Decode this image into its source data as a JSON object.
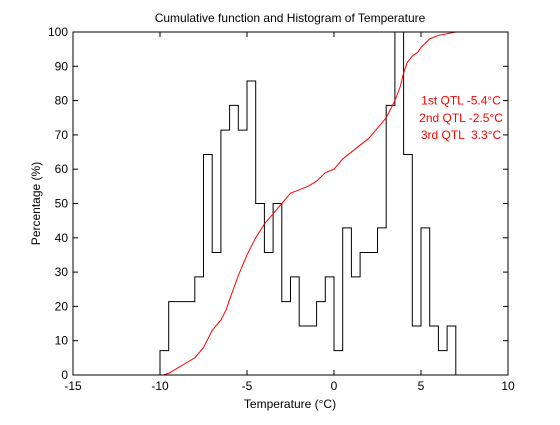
{
  "chart_data": {
    "type": "line",
    "title": "Cumulative function and Histogram of Temperature",
    "xlabel": "Temperature (°C)",
    "ylabel": "Percentage (%)",
    "xlim": [
      -15,
      10
    ],
    "ylim": [
      0,
      100
    ],
    "xticks": [
      -15,
      -10,
      -5,
      0,
      5,
      10
    ],
    "yticks": [
      0,
      10,
      20,
      30,
      40,
      50,
      60,
      70,
      80,
      90,
      100
    ],
    "grid": false,
    "series": [
      {
        "kind": "histogram-stairs",
        "color": "#000000",
        "bin_edges": [
          -10,
          -9.5,
          -9,
          -8,
          -7.5,
          -7,
          -6.5,
          -6,
          -5.5,
          -5,
          -4.5,
          -4,
          -3.5,
          -3,
          -2.5,
          -2,
          -1.5,
          -1,
          -0.5,
          0,
          0.5,
          1,
          1.5,
          2,
          2.5,
          3,
          3.5,
          4,
          4.5,
          5,
          5.5,
          6,
          6.5,
          7
        ],
        "values": [
          7.1,
          21.4,
          21.4,
          28.6,
          64.3,
          35.7,
          71.4,
          78.6,
          71.4,
          85.7,
          50,
          35.7,
          50,
          21.4,
          28.6,
          14.3,
          14.3,
          21.4,
          28.6,
          7.1,
          42.9,
          28.6,
          35.7,
          35.7,
          42.9,
          78.6,
          100,
          64.3,
          14.3,
          42.9,
          14.3,
          7.1,
          14.3
        ]
      },
      {
        "kind": "cdf",
        "color": "#ff0000",
        "x": [
          -15,
          -9.8,
          -9.5,
          -9,
          -8.5,
          -8,
          -7.5,
          -7,
          -6.5,
          -6.2,
          -6,
          -5.5,
          -5,
          -4.5,
          -4,
          -3.5,
          -3,
          -2.5,
          -2,
          -1.5,
          -1,
          -0.5,
          0,
          0.5,
          1,
          1.5,
          2,
          2.5,
          3,
          3.5,
          3.8,
          4,
          4.2,
          4.5,
          4.8,
          5,
          5.5,
          6,
          6.5,
          7,
          10
        ],
        "y": [
          0,
          0,
          0.5,
          2,
          3.5,
          5,
          8,
          13,
          16,
          19,
          22,
          29,
          35,
          40,
          44,
          47,
          50,
          53,
          54,
          55,
          56.5,
          59,
          60,
          63,
          65,
          67,
          69,
          72,
          75,
          80,
          84,
          88,
          91,
          93,
          94,
          95.5,
          98,
          99,
          99.5,
          100,
          100
        ]
      }
    ],
    "annotations": [
      {
        "text": "1st QTL -5.4°C",
        "color": "#ff0000",
        "x": 7.3,
        "y": 80
      },
      {
        "text": "2nd QTL -2.5°C",
        "color": "#ff0000",
        "x": 7.3,
        "y": 75
      },
      {
        "text": "3rd QTL  3.3°C",
        "color": "#ff0000",
        "x": 7.3,
        "y": 70
      }
    ]
  }
}
